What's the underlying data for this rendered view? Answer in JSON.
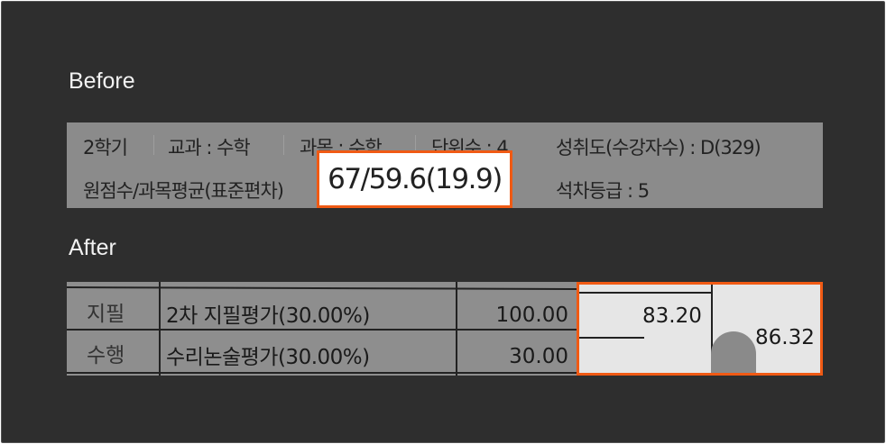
{
  "before": {
    "label": "Before",
    "row1": [
      "2학기",
      "교과 : 수학",
      "과목 : 수학",
      "단위수 : 4",
      "성취도(수강자수) : D(329)"
    ],
    "row2_label": "원점수/과목평균(표준편차)",
    "highlight": "67/59.6(19.9)",
    "grade": "석차등급 : 5"
  },
  "after": {
    "label": "After",
    "rows": [
      {
        "type": "지필",
        "name": "2차 지필평가(30.00%)",
        "max": "100.00"
      },
      {
        "type": "수행",
        "name": "수리논술평가(30.00%)",
        "max": "30.00"
      }
    ],
    "highlight": {
      "score": "83.20",
      "total": "86.32"
    }
  },
  "colors": {
    "highlight_border": "#f05a14"
  }
}
